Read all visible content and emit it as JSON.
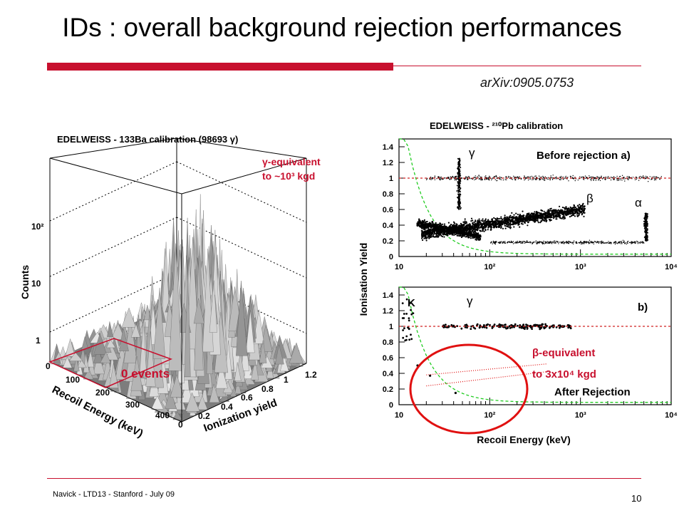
{
  "slide": {
    "title": "IDs : overall background rejection performances",
    "reference": "arXiv:0905.0753",
    "footer": "Navick - LTD13 - Stanford - July 09",
    "page_number": "10",
    "accent_color": "#c8102e"
  },
  "annotations": {
    "gamma_equiv_line1": "γ-equivalent",
    "gamma_equiv_line2": "to ~10³ kgd",
    "beta_equiv_line1": "β-equivalent",
    "beta_equiv_line2": "to 3x10⁴ kgd",
    "zero_events": "0 events"
  },
  "chart_data": [
    {
      "type": "surface3d",
      "title": "EDELWEISS - 133Ba calibration  (98693 γ)",
      "xlabel": "Recoil Energy (keV)",
      "x_ticks": [
        "0",
        "100",
        "200",
        "300",
        "400"
      ],
      "ylabel": "Ionization yield",
      "y_ticks": [
        "0",
        "0.2",
        "0.4",
        "0.6",
        "0.8",
        "1",
        "1.2"
      ],
      "zlabel": "Counts",
      "z_ticks": [
        "1",
        "10",
        "10²"
      ],
      "z_scale": "log"
    },
    {
      "type": "scatter",
      "title": "EDELWEISS - ²¹⁰Pb calibration",
      "panel_label": "Before rejection a)",
      "xscale": "log",
      "xlim": [
        10,
        10000
      ],
      "x_ticks": [
        "10",
        "10²",
        "10³",
        "10⁴"
      ],
      "ylabel": "Ionisation Yield",
      "ylim": [
        0,
        1.5
      ],
      "y_ticks": [
        "0",
        "0.2",
        "0.4",
        "0.6",
        "0.8",
        "1",
        "1.2",
        "1.4"
      ],
      "reference_line_y": 1,
      "population_labels": [
        "γ",
        "β",
        "α"
      ]
    },
    {
      "type": "scatter",
      "panel_label": "b)",
      "subtitle": "After Rejection",
      "xlabel": "Recoil Energy (keV)",
      "xscale": "log",
      "xlim": [
        10,
        10000
      ],
      "x_ticks": [
        "10",
        "10²",
        "10³",
        "10⁴"
      ],
      "ylim": [
        0,
        1.5
      ],
      "y_ticks": [
        "0",
        "0.2",
        "0.4",
        "0.6",
        "0.8",
        "1",
        "1.2",
        "1.4"
      ],
      "reference_line_y": 1,
      "population_labels": [
        "K",
        "γ"
      ]
    }
  ]
}
